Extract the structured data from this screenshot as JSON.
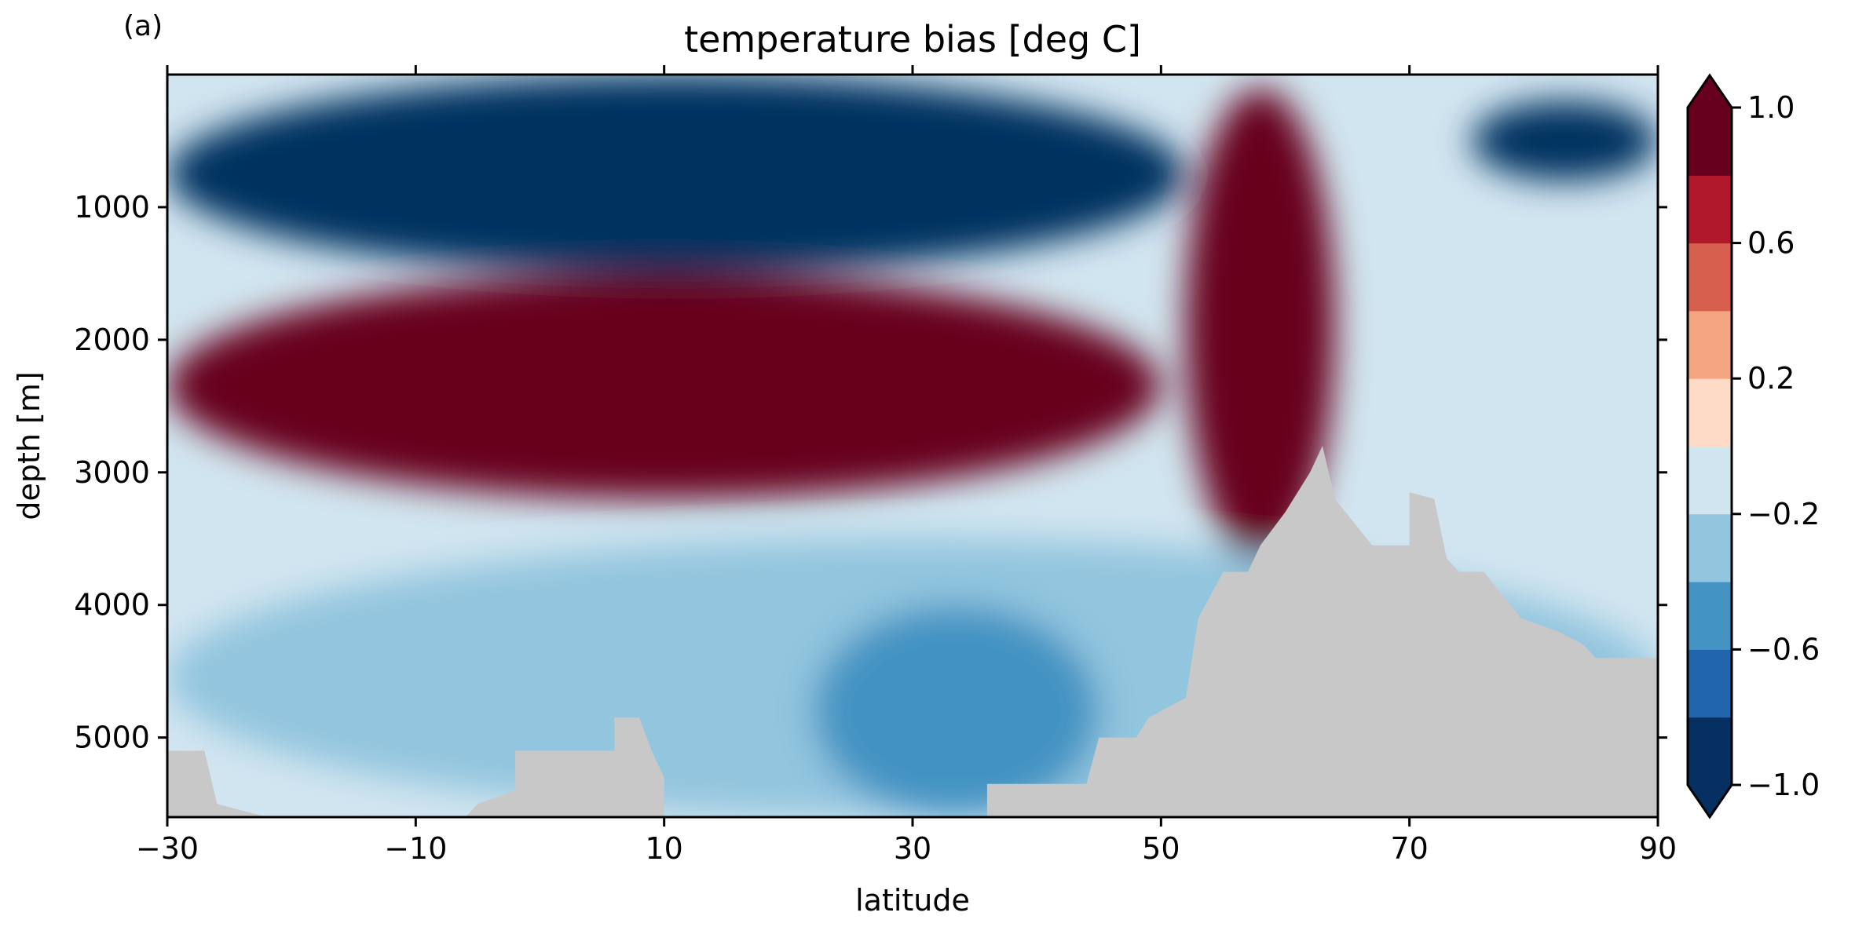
{
  "panel_label": "(a)",
  "chart_data": {
    "type": "heatmap",
    "subtype": "filled-contour-section",
    "title": "temperature bias [deg C]",
    "xlabel": "latitude",
    "ylabel": "depth [m]",
    "xlim": [
      -30,
      90
    ],
    "ylim": [
      5600,
      0
    ],
    "y_inverted": true,
    "xticks": [
      -30,
      -10,
      10,
      30,
      50,
      70,
      90
    ],
    "xtick_labels": [
      "−30",
      "−10",
      "10",
      "30",
      "50",
      "70",
      "90"
    ],
    "yticks": [
      1000,
      2000,
      3000,
      4000,
      5000
    ],
    "ytick_labels": [
      "1000",
      "2000",
      "3000",
      "4000",
      "5000"
    ],
    "grid": false,
    "colorbar": {
      "levels": [
        -1.0,
        -0.8,
        -0.6,
        -0.4,
        -0.2,
        0.0,
        0.2,
        0.4,
        0.6,
        0.8,
        1.0
      ],
      "colors": [
        "#053061",
        "#2166ac",
        "#4393c3",
        "#92c5de",
        "#d1e5f0",
        "#fddbc7",
        "#f4a582",
        "#d6604d",
        "#b2182b",
        "#67001f"
      ],
      "extend": "both",
      "ticks": [
        -1.0,
        -0.6,
        -0.2,
        0.2,
        0.6,
        1.0
      ],
      "tick_labels": [
        "−1.0",
        "−0.6",
        "−0.2",
        "0.2",
        "0.6",
        "1.0"
      ]
    },
    "mask_color": "#c8c8c8",
    "regions": [
      {
        "feature": "upper cold bias band",
        "lat": [
          -30,
          52
        ],
        "depth": [
          0,
          1500
        ],
        "value": -1.0
      },
      {
        "feature": "northern cold core",
        "lat": [
          75,
          90
        ],
        "depth": [
          200,
          800
        ],
        "value": -1.0
      },
      {
        "feature": "warm deep water band",
        "lat": [
          -30,
          50
        ],
        "depth": [
          1500,
          3200
        ],
        "value": 1.0
      },
      {
        "feature": "northern warm plume",
        "lat": [
          52,
          64
        ],
        "depth": [
          100,
          3700
        ],
        "value": 1.0
      },
      {
        "feature": "abyssal cool layer",
        "lat": [
          -30,
          90
        ],
        "depth": [
          3500,
          5600
        ],
        "value": -0.3
      },
      {
        "feature": "abyssal cold patch",
        "lat": [
          22,
          45
        ],
        "depth": [
          4000,
          5600
        ],
        "value": -0.5
      }
    ],
    "bathymetry": [
      [
        -30,
        5100
      ],
      [
        -27,
        5100
      ],
      [
        -26,
        5500
      ],
      [
        -22,
        5600
      ],
      [
        -6,
        5600
      ],
      [
        -5,
        5500
      ],
      [
        -2,
        5400
      ],
      [
        -2,
        5100
      ],
      [
        6,
        5100
      ],
      [
        6,
        4850
      ],
      [
        8,
        4850
      ],
      [
        9,
        5100
      ],
      [
        10,
        5300
      ],
      [
        10,
        5600
      ],
      [
        36,
        5600
      ],
      [
        36,
        5350
      ],
      [
        44,
        5350
      ],
      [
        45,
        5000
      ],
      [
        48,
        5000
      ],
      [
        49,
        4850
      ],
      [
        52,
        4700
      ],
      [
        53,
        4100
      ],
      [
        55,
        3750
      ],
      [
        57,
        3750
      ],
      [
        58,
        3550
      ],
      [
        60,
        3300
      ],
      [
        62,
        3000
      ],
      [
        63,
        2800
      ],
      [
        64,
        3200
      ],
      [
        67,
        3550
      ],
      [
        70,
        3550
      ],
      [
        70,
        3150
      ],
      [
        72,
        3200
      ],
      [
        73,
        3650
      ],
      [
        74,
        3750
      ],
      [
        76,
        3750
      ],
      [
        79,
        4100
      ],
      [
        82,
        4200
      ],
      [
        84,
        4300
      ],
      [
        85,
        4400
      ],
      [
        90,
        4400
      ]
    ]
  }
}
